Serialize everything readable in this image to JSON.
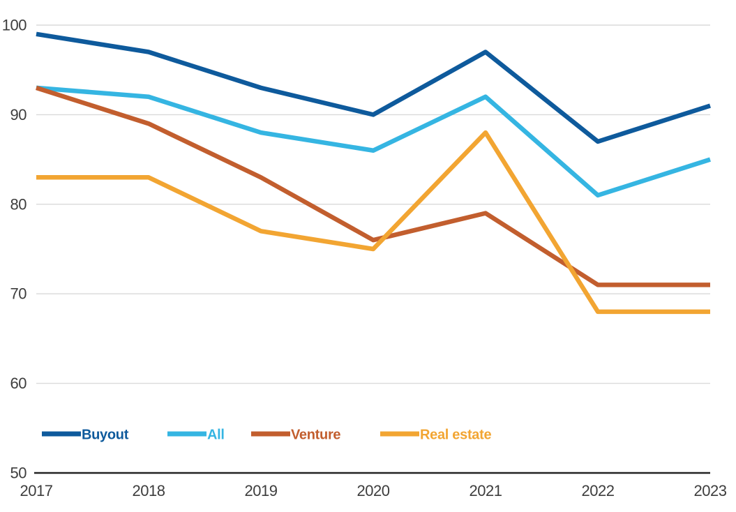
{
  "chart_data": {
    "type": "line",
    "x": [
      "2017",
      "2018",
      "2019",
      "2020",
      "2021",
      "2022",
      "2023"
    ],
    "series": [
      {
        "name": "Buyout",
        "color": "#0E5A9C",
        "values": [
          99,
          97,
          93,
          90,
          97,
          87,
          91
        ]
      },
      {
        "name": "All",
        "color": "#35B5E2",
        "values": [
          93,
          92,
          88,
          86,
          92,
          81,
          85
        ]
      },
      {
        "name": "Venture",
        "color": "#C25E2E",
        "values": [
          93,
          89,
          83,
          76,
          79,
          71,
          71
        ]
      },
      {
        "name": "Real estate",
        "color": "#F2A532",
        "values": [
          83,
          83,
          77,
          75,
          88,
          68,
          68
        ]
      }
    ],
    "title": "",
    "xlabel": "",
    "ylabel": "",
    "ylim": [
      50,
      100
    ],
    "yticks": [
      50,
      60,
      70,
      80,
      90,
      100
    ],
    "grid": true,
    "legend_position": "bottom-left-inside"
  },
  "style": {
    "background": "#FFFFFF",
    "grid_color": "#DADADA",
    "axis_color": "#222222",
    "tick_label_color": "#3D3D3D"
  }
}
